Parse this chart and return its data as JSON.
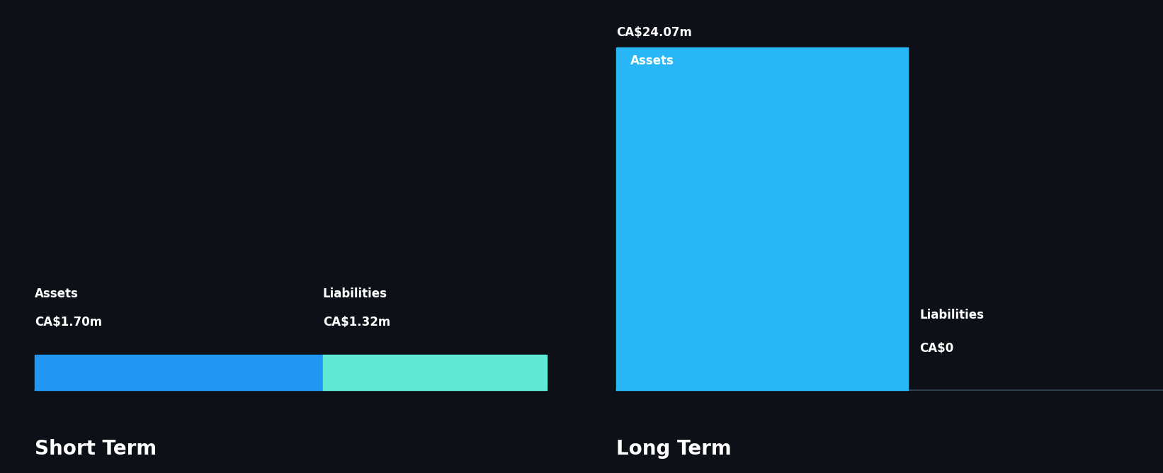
{
  "background_color": "#0d1117",
  "short_term": {
    "assets_value": 1.7,
    "assets_label": "Assets",
    "assets_value_label": "CA$1.70m",
    "assets_color": "#2196f3",
    "liabilities_value": 1.32,
    "liabilities_label": "Liabilities",
    "liabilities_value_label": "CA$1.32m",
    "liabilities_color": "#5eead4",
    "section_label": "Short Term"
  },
  "long_term": {
    "assets_value": 24.07,
    "assets_label": "Assets",
    "assets_value_label": "CA$24.07m",
    "assets_color": "#29b6f6",
    "liabilities_value": 0,
    "liabilities_label": "Liabilities",
    "liabilities_value_label": "CA$0",
    "section_label": "Long Term"
  },
  "text_color": "#ffffff",
  "label_fontsize": 12,
  "value_fontsize": 12,
  "section_fontsize": 20,
  "line_color": "#3a4a5a"
}
